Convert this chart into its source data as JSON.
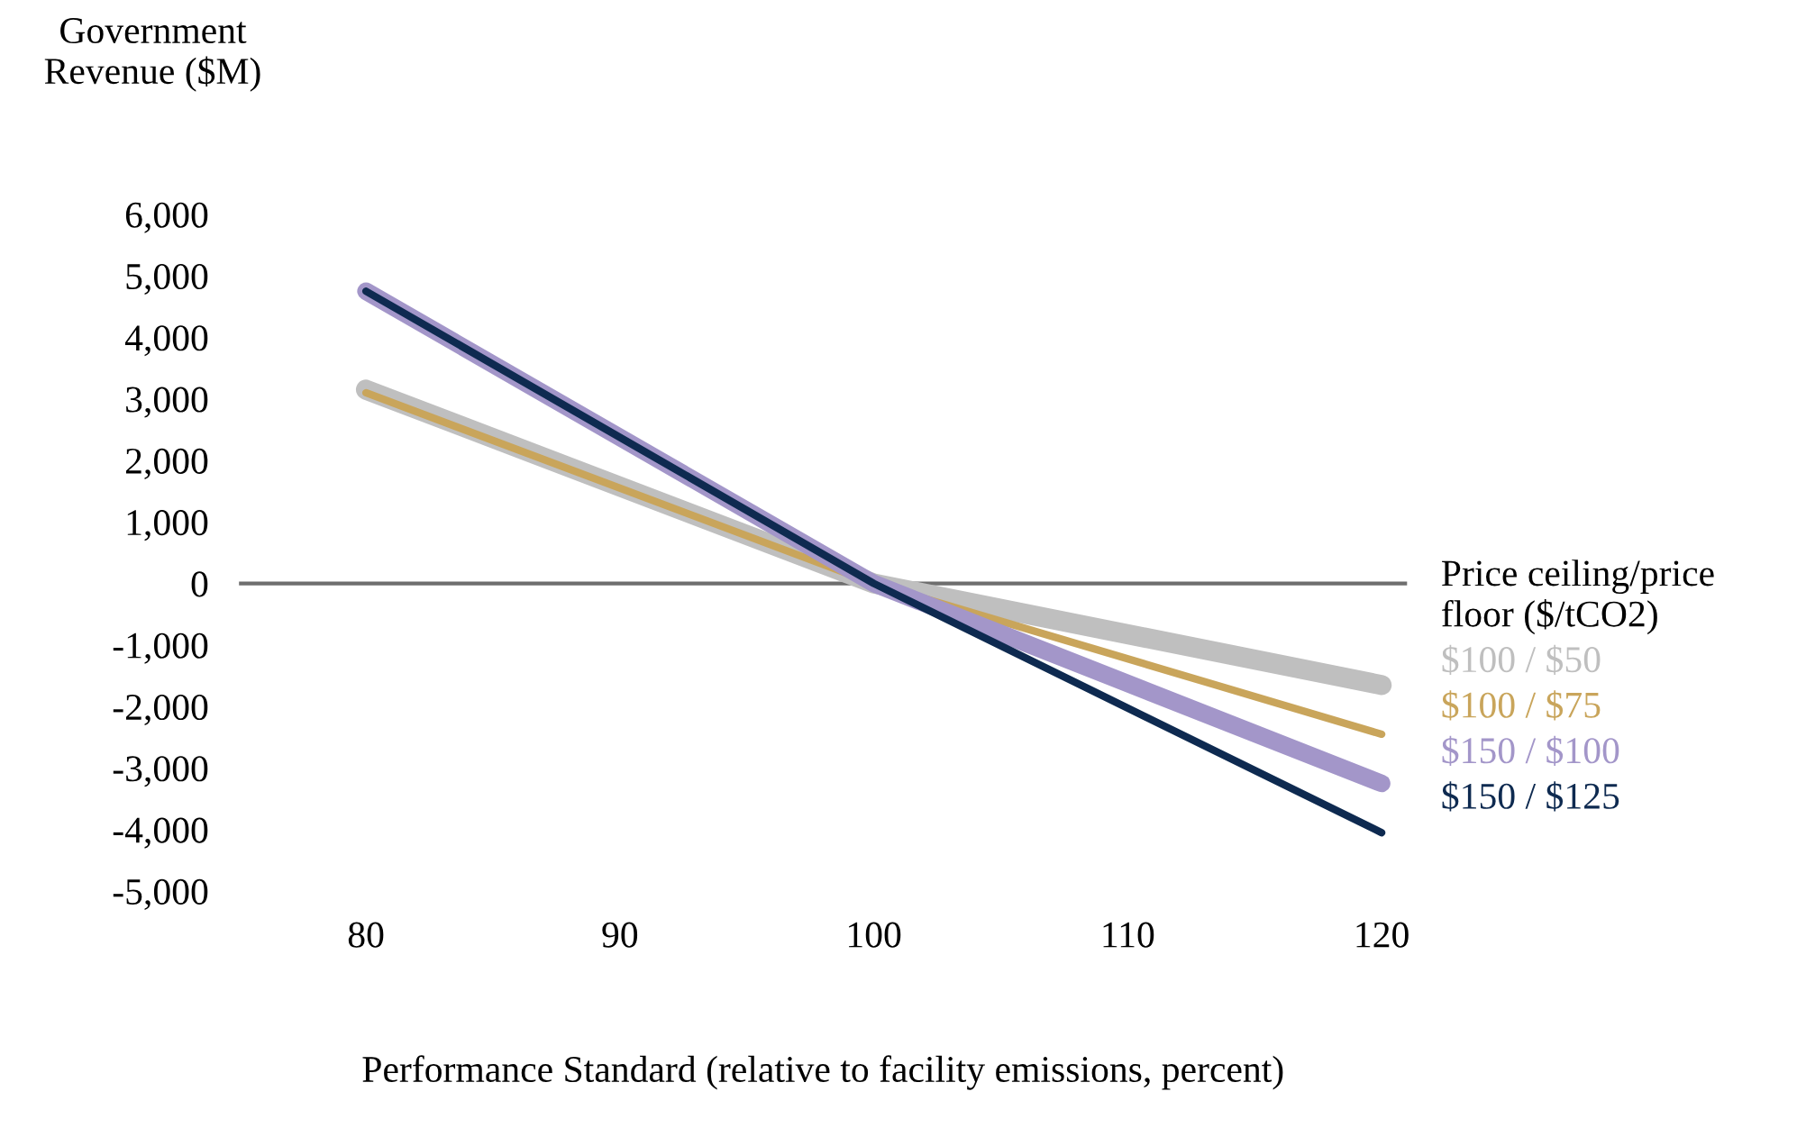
{
  "chart_data": {
    "type": "line",
    "ylabel": "Government\nRevenue ($M)",
    "xlabel": "Performance Standard (relative to facility emissions, percent)",
    "legend_title": "Price ceiling/price\nfloor ($/tCO2)",
    "x": [
      80,
      100,
      120
    ],
    "series": [
      {
        "name": "$100 / $50",
        "color": "#bfbfbf",
        "values": [
          3150,
          0,
          -1650
        ]
      },
      {
        "name": "$100 / $75",
        "color": "#c9a55b",
        "values": [
          3100,
          0,
          -2450
        ]
      },
      {
        "name": "$150 / $100",
        "color": "#a396c9",
        "values": [
          4750,
          0,
          -3250
        ]
      },
      {
        "name": "$150 / $125",
        "color": "#0e2a50",
        "values": [
          4750,
          0,
          -4050
        ]
      }
    ],
    "xlim": [
      75,
      121
    ],
    "ylim": [
      -5000,
      6000
    ],
    "xticks": [
      80,
      90,
      100,
      110,
      120
    ],
    "yticks": [
      {
        "value": -5000,
        "label": "-5,000"
      },
      {
        "value": -4000,
        "label": "-4,000"
      },
      {
        "value": -3000,
        "label": "-3,000"
      },
      {
        "value": -2000,
        "label": "-2,000"
      },
      {
        "value": -1000,
        "label": "-1,000"
      },
      0,
      {
        "value": 1000,
        "label": "1,000"
      },
      {
        "value": 2000,
        "label": "2,000"
      },
      {
        "value": 3000,
        "label": "3,000"
      },
      {
        "value": 4000,
        "label": "4,000"
      },
      {
        "value": 5000,
        "label": "5,000"
      },
      {
        "value": 6000,
        "label": "6,000"
      }
    ],
    "ref_lines": [
      {
        "axis": "y",
        "value": 0,
        "color": "#6e6e6e"
      }
    ],
    "grid": false,
    "legend": "right",
    "marker": "none",
    "line_style": "solid"
  }
}
